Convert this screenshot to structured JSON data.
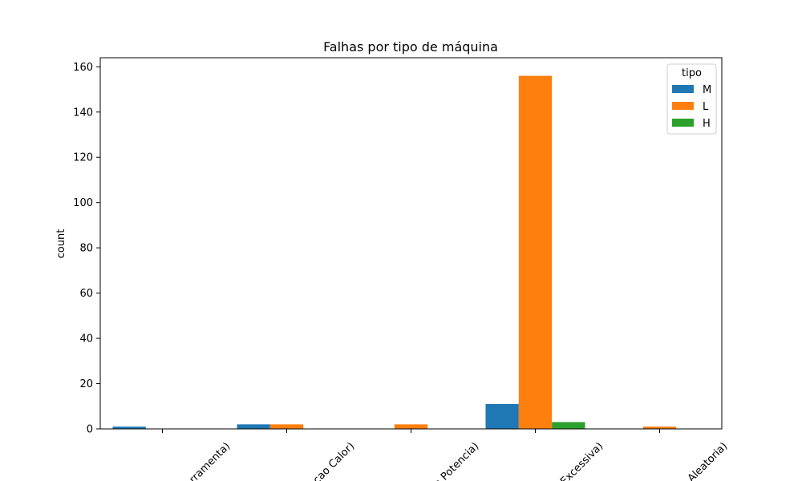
{
  "chart_data": {
    "type": "bar",
    "title": "Falhas por tipo de máquina",
    "xlabel": "",
    "ylabel": "count",
    "categories": [
      "Falha (Desgaste Ferramenta)",
      "Falha (Dissipacao Calor)",
      "Falha (Falha Potencia)",
      "Falha (Tensao Excessiva)",
      "Falha (Falha Aleatoria)"
    ],
    "category_tick_text": [
      "rramenta)",
      "cao Calor)",
      "a Potencia)",
      "Excessiva)",
      "Aleatoria)"
    ],
    "series": [
      {
        "name": "M",
        "color": "#1f77b4",
        "values": [
          1,
          2,
          0,
          11,
          0
        ]
      },
      {
        "name": "L",
        "color": "#ff7f0e",
        "values": [
          0,
          2,
          2,
          156,
          1
        ]
      },
      {
        "name": "H",
        "color": "#2ca02c",
        "values": [
          0,
          0,
          0,
          3,
          0
        ]
      }
    ],
    "ylim": [
      0,
      164
    ],
    "yticks": [
      0,
      20,
      40,
      60,
      80,
      100,
      120,
      140,
      160
    ],
    "grid": false,
    "legend": {
      "title": "tipo",
      "placement": "top-right"
    }
  }
}
